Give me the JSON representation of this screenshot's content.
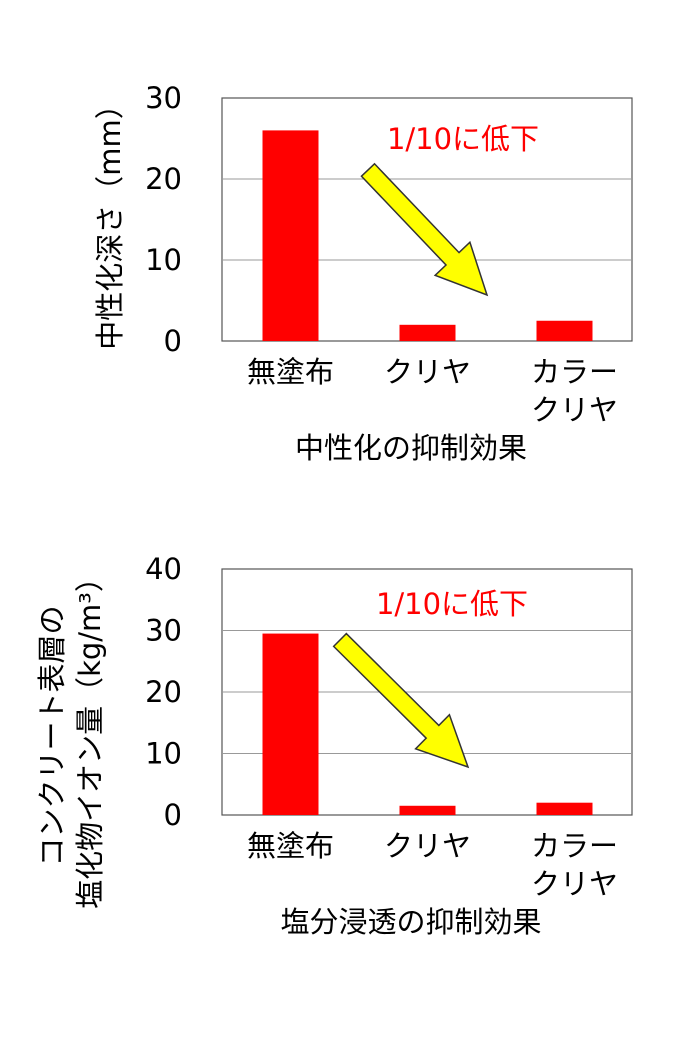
{
  "chart_data": [
    {
      "type": "bar",
      "title": "中性化の抑制効果",
      "ylabel_lines": [
        "中性化深さ（mm）"
      ],
      "categories": [
        [
          "無塗布"
        ],
        [
          "クリヤ"
        ],
        [
          "カラー",
          "クリヤ"
        ]
      ],
      "values": [
        26,
        2,
        2.5
      ],
      "ylim": [
        0,
        30
      ],
      "yticks": [
        0,
        10,
        20,
        30
      ],
      "grid": true,
      "bar_color": "#ff0000",
      "annotation": "1/10に低下",
      "arrow_color": "#ffff00"
    },
    {
      "type": "bar",
      "title": "塩分浸透の抑制効果",
      "ylabel_lines": [
        "コンクリート表層の",
        "塩化物イオン量（kg/m³）"
      ],
      "categories": [
        [
          "無塗布"
        ],
        [
          "クリヤ"
        ],
        [
          "カラー",
          "クリヤ"
        ]
      ],
      "values": [
        29.5,
        1.5,
        2
      ],
      "ylim": [
        0,
        40
      ],
      "yticks": [
        0,
        10,
        20,
        30,
        40
      ],
      "grid": true,
      "bar_color": "#ff0000",
      "annotation": "1/10に低下",
      "arrow_color": "#ffff00"
    }
  ]
}
